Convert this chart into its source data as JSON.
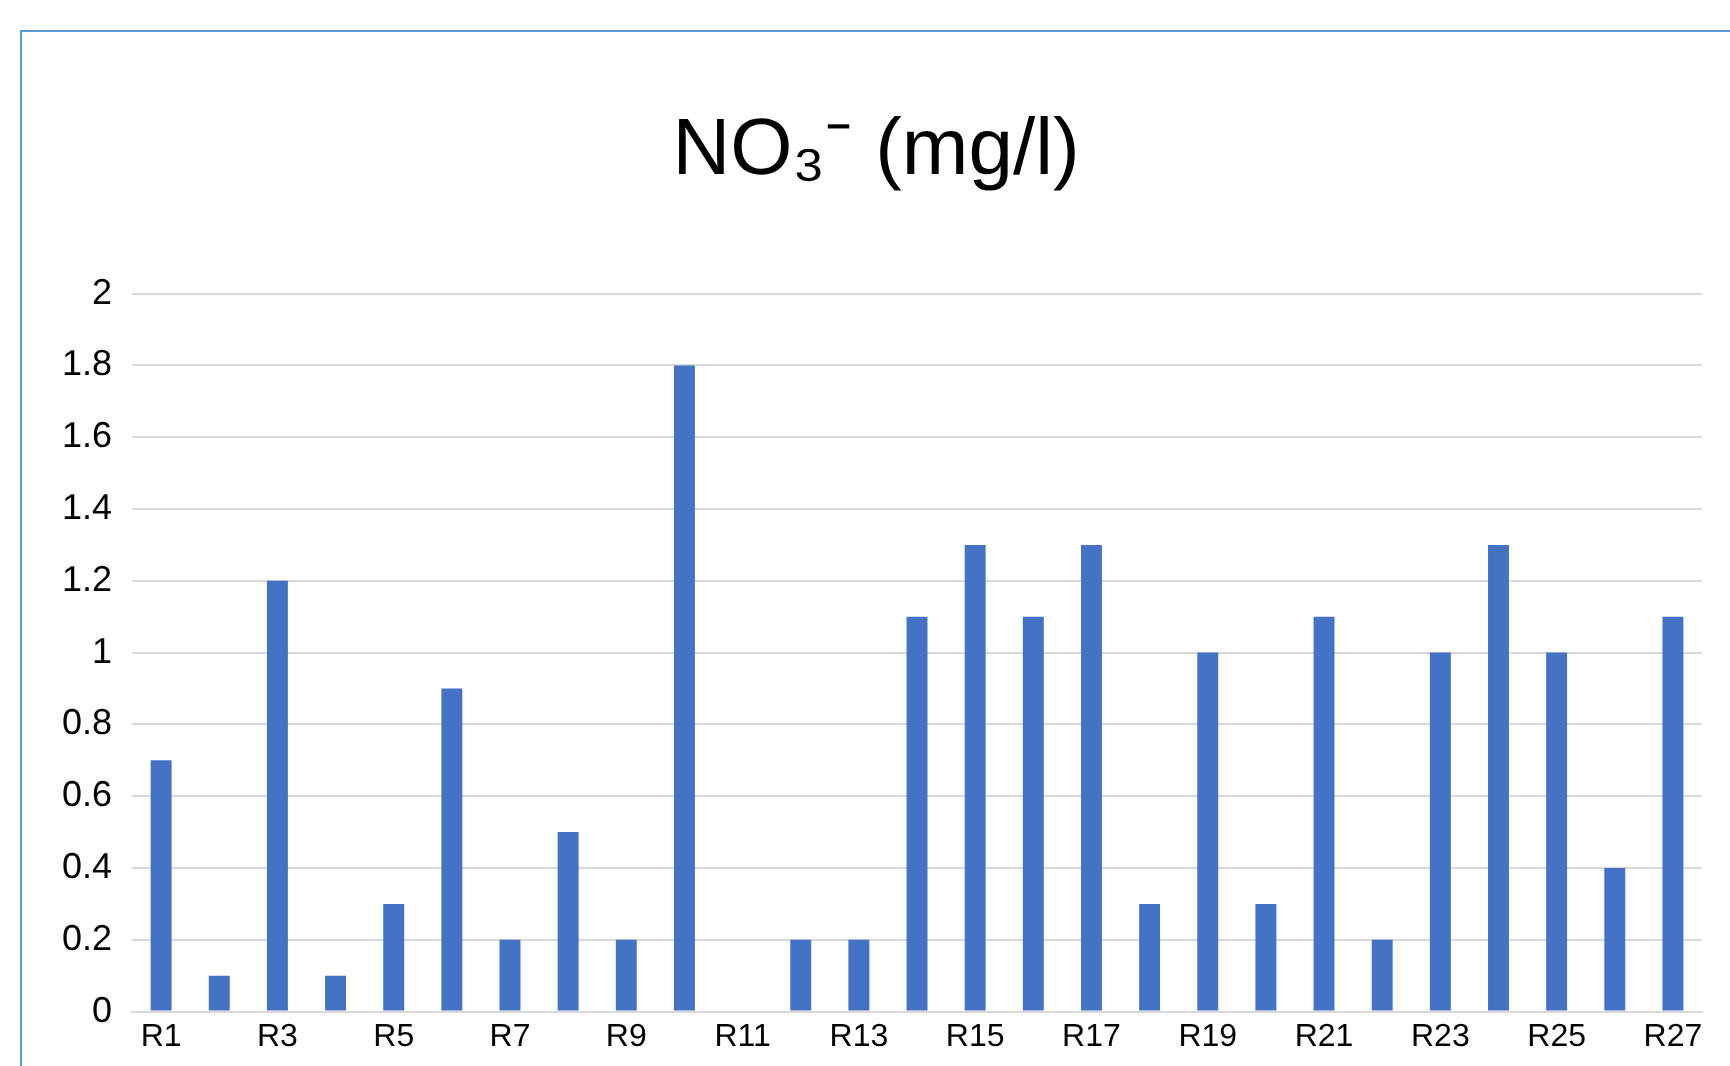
{
  "chart_data": {
    "type": "bar",
    "title": "NO₃⁻ (mg/l)",
    "categories": [
      "R1",
      null,
      "R3",
      null,
      "R5",
      null,
      "R7",
      null,
      "R9",
      null,
      "R11",
      null,
      "R13",
      null,
      "R15",
      null,
      "R17",
      null,
      "R19",
      null,
      "R21",
      null,
      "R23",
      null,
      "R25",
      null,
      "R27"
    ],
    "values": [
      0.7,
      0.1,
      1.2,
      0.1,
      0.3,
      0.9,
      0.2,
      0.5,
      0.2,
      1.8,
      0,
      0.2,
      0.2,
      1.1,
      1.3,
      1.1,
      1.3,
      0.3,
      1.0,
      0.3,
      1.1,
      0.2,
      1.0,
      1.3,
      1.0,
      0.4,
      1.1
    ],
    "color": "#4472c4",
    "ylim": [
      0,
      2
    ],
    "yticks": [
      0,
      0.2,
      0.4,
      0.6,
      0.8,
      1,
      1.2,
      1.4,
      1.6,
      1.8,
      2
    ],
    "grid": "y"
  }
}
